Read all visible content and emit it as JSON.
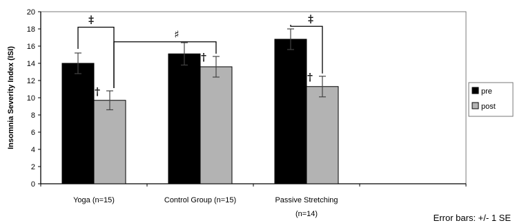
{
  "chart_data": {
    "type": "bar",
    "ylabel": "Insomnia Severity Index (ISI)",
    "ylim": [
      0,
      20
    ],
    "ytick_step": 2,
    "categories": [
      [
        "Yoga (n=15)"
      ],
      [
        "Control Group (n=15)"
      ],
      [
        "Passive Stretching",
        "(n=14)"
      ]
    ],
    "empty_slot_after_categories": 1,
    "series": [
      {
        "name": "pre",
        "color": "#000000",
        "values": [
          14.0,
          15.1,
          16.8
        ],
        "se": [
          1.2,
          1.3,
          1.2
        ]
      },
      {
        "name": "post",
        "color": "#b3b3b3",
        "values": [
          9.7,
          13.6,
          11.3
        ],
        "se": [
          1.1,
          1.2,
          1.2
        ]
      }
    ],
    "post_markers": [
      "†",
      "†",
      "†"
    ],
    "brackets": [
      {
        "from": "Yoga pre",
        "to": "Yoga post",
        "symbol": "‡"
      },
      {
        "from": "Yoga post",
        "to": "Control Group post",
        "symbol": "♯"
      },
      {
        "from": "Passive Stretching pre",
        "to": "Passive Stretching post",
        "symbol": "‡"
      }
    ],
    "legend": {
      "position": "right",
      "entries": [
        "pre",
        "post"
      ]
    },
    "grid": false,
    "error_bar_note": "Error bars: +/- 1 SE"
  }
}
